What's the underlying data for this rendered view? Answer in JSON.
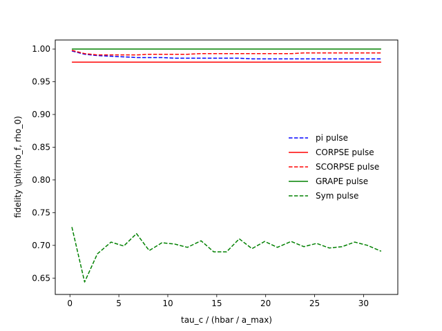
{
  "chart_data": {
    "type": "line",
    "title": "",
    "xlabel": "tau_c / (hbar / a_max)",
    "ylabel": "fidelity \\phi(rho_f, rho_0)",
    "xlim": [
      -1.5,
      33.5
    ],
    "ylim": [
      0.625,
      1.0138
    ],
    "xticks": [
      0,
      5,
      10,
      15,
      20,
      25,
      30
    ],
    "yticks": [
      0.65,
      0.7,
      0.75,
      0.8,
      0.85,
      0.9,
      0.95,
      1.0
    ],
    "xtick_labels": [
      "0",
      "5",
      "10",
      "15",
      "20",
      "25",
      "30"
    ],
    "ytick_labels": [
      "0.65",
      "0.70",
      "0.75",
      "0.80",
      "0.85",
      "0.90",
      "0.95",
      "1.00"
    ],
    "grid": false,
    "legend_position": "center-right",
    "x": [
      0.2,
      1.5,
      2.8,
      4.2,
      5.5,
      6.8,
      8.1,
      9.4,
      10.7,
      12.0,
      13.4,
      14.7,
      16.0,
      17.3,
      18.6,
      19.9,
      21.2,
      22.6,
      23.9,
      25.2,
      26.5,
      27.8,
      29.1,
      30.4,
      31.8
    ],
    "series": [
      {
        "name": "pi pulse",
        "color": "#0000ff",
        "dash": "dashed",
        "values": [
          0.997,
          0.992,
          0.99,
          0.989,
          0.988,
          0.987,
          0.987,
          0.987,
          0.986,
          0.986,
          0.986,
          0.986,
          0.986,
          0.986,
          0.985,
          0.985,
          0.985,
          0.985,
          0.985,
          0.985,
          0.985,
          0.985,
          0.985,
          0.985,
          0.985
        ]
      },
      {
        "name": "CORPSE pulse",
        "color": "#ff0000",
        "dash": "solid",
        "values": [
          0.98,
          0.98,
          0.98,
          0.98,
          0.98,
          0.98,
          0.98,
          0.98,
          0.98,
          0.98,
          0.98,
          0.98,
          0.98,
          0.98,
          0.98,
          0.98,
          0.98,
          0.98,
          0.98,
          0.98,
          0.98,
          0.98,
          0.98,
          0.98,
          0.98
        ]
      },
      {
        "name": "SCORPSE pulse",
        "color": "#ff0000",
        "dash": "dashed",
        "values": [
          0.998,
          0.993,
          0.991,
          0.991,
          0.991,
          0.991,
          0.992,
          0.992,
          0.992,
          0.992,
          0.993,
          0.993,
          0.993,
          0.993,
          0.993,
          0.993,
          0.993,
          0.993,
          0.994,
          0.994,
          0.994,
          0.994,
          0.994,
          0.994,
          0.994
        ]
      },
      {
        "name": "GRAPE pulse",
        "color": "#008000",
        "dash": "solid",
        "values": [
          1.0,
          1.0,
          1.0,
          1.0,
          1.0,
          1.0,
          1.0,
          1.0,
          1.0,
          1.0,
          1.0,
          1.0,
          1.0,
          1.0,
          1.0,
          1.0,
          1.0,
          1.0,
          1.0,
          1.0,
          1.0,
          1.0,
          1.0,
          1.0,
          1.0
        ]
      },
      {
        "name": "Sym pulse",
        "color": "#008000",
        "dash": "dashed",
        "values": [
          0.728,
          0.644,
          0.687,
          0.705,
          0.699,
          0.718,
          0.692,
          0.704,
          0.702,
          0.697,
          0.707,
          0.69,
          0.69,
          0.71,
          0.695,
          0.706,
          0.697,
          0.706,
          0.698,
          0.703,
          0.696,
          0.698,
          0.705,
          0.7,
          0.691
        ]
      }
    ]
  }
}
